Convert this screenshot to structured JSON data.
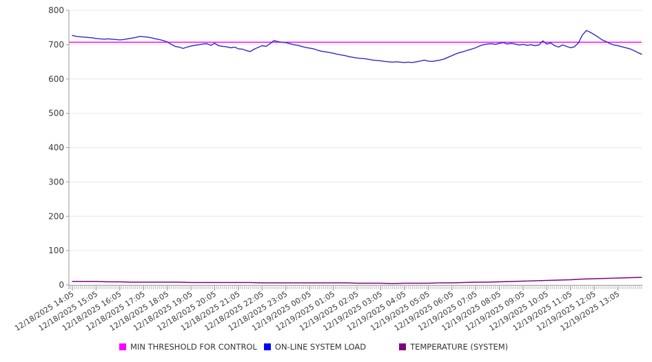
{
  "chart_data": {
    "type": "line",
    "title": "",
    "xlabel": "",
    "ylabel": "",
    "grid": "horizontal",
    "legend_position": "bottom",
    "y_axis": {
      "min": 0,
      "max": 800,
      "tick_step": 100,
      "ticks": [
        0,
        100,
        200,
        300,
        400,
        500,
        600,
        700,
        800
      ]
    },
    "x_axis": {
      "minor_tick_minutes": 5,
      "label_rotation_deg": -32,
      "labels": [
        "12/18/2025 14:05",
        "12/18/2025 15:05",
        "12/18/2025 16:05",
        "12/18/2025 17:05",
        "12/18/2025 18:05",
        "12/18/2025 19:05",
        "12/18/2025 20:05",
        "12/18/2025 21:05",
        "12/18/2025 22:05",
        "12/18/2025 23:05",
        "12/19/2025 00:05",
        "12/19/2025 01:05",
        "12/19/2025 02:05",
        "12/19/2025 03:05",
        "12/19/2025 04:05",
        "12/19/2025 05:05",
        "12/19/2025 06:05",
        "12/19/2025 07:05",
        "12/19/2025 08:05",
        "12/19/2025 09:05",
        "12/19/2025 10:05",
        "12/19/2025 11:05",
        "12/19/2025 12:05",
        "12/19/2025 13:05"
      ]
    },
    "series": [
      {
        "name": "MIN THRESHOLD FOR CONTROL",
        "color": "#FF00FF",
        "kind": "threshold",
        "value": 707
      },
      {
        "name": "ON-LINE SYSTEM LOAD",
        "color": "#2A2ACC",
        "kind": "line",
        "start": "12/18/2025 14:05",
        "interval_minutes": 10,
        "values": [
          727,
          724,
          723,
          722,
          721,
          720,
          718,
          717,
          716,
          717,
          716,
          715,
          714,
          715,
          717,
          719,
          721,
          724,
          723,
          722,
          720,
          717,
          715,
          712,
          708,
          701,
          695,
          693,
          689,
          693,
          696,
          698,
          700,
          702,
          703,
          698,
          704,
          697,
          695,
          694,
          691,
          693,
          688,
          687,
          683,
          680,
          687,
          692,
          697,
          695,
          703,
          712,
          709,
          707,
          706,
          703,
          700,
          698,
          695,
          692,
          690,
          688,
          684,
          681,
          679,
          677,
          675,
          672,
          670,
          668,
          665,
          663,
          661,
          660,
          659,
          657,
          655,
          654,
          653,
          651,
          650,
          649,
          650,
          649,
          648,
          649,
          648,
          650,
          652,
          655,
          652,
          651,
          653,
          655,
          658,
          663,
          668,
          673,
          677,
          680,
          684,
          687,
          691,
          696,
          700,
          702,
          703,
          701,
          704,
          706,
          702,
          704,
          702,
          699,
          701,
          698,
          700,
          697,
          699,
          711,
          702,
          705,
          697,
          693,
          699,
          695,
          691,
          694,
          705,
          728,
          741,
          736,
          729,
          722,
          714,
          709,
          703,
          699,
          697,
          694,
          691,
          688,
          683,
          677,
          672
        ]
      },
      {
        "name": "TEMPERATURE (SYSTEM)",
        "color": "#800080",
        "kind": "line",
        "start": "12/18/2025 14:05",
        "interval_minutes": 30,
        "values": [
          10,
          10,
          10,
          9,
          9,
          8,
          8,
          8,
          8,
          8,
          7,
          7,
          7,
          7,
          7,
          7,
          6,
          6,
          6,
          6,
          6,
          6,
          6,
          6,
          5,
          5,
          5,
          4,
          5,
          5,
          5,
          6,
          6,
          7,
          8,
          8,
          9,
          10,
          11,
          12,
          13,
          14,
          15,
          17,
          18,
          19,
          20,
          21,
          22
        ]
      }
    ]
  },
  "legend": {
    "items": [
      {
        "label": "MIN THRESHOLD FOR CONTROL",
        "color": "#FF00FF"
      },
      {
        "label": "ON-LINE SYSTEM LOAD",
        "color": "#0000FF"
      },
      {
        "label": "TEMPERATURE (SYSTEM)",
        "color": "#800080"
      }
    ]
  }
}
